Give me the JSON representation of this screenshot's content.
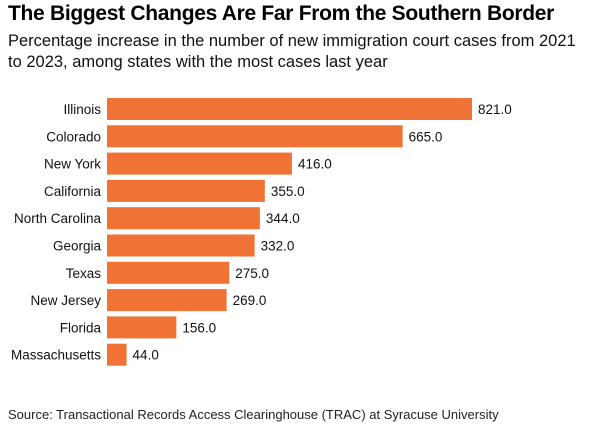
{
  "title": "The Biggest Changes Are Far From the Southern Border",
  "subtitle": "Percentage increase in the number of new immigration court cases from 2021 to 2023, among states with the most cases last year",
  "source": "Source: Transactional Records Access Clearinghouse (TRAC) at Syracuse University",
  "colors": {
    "bar": "#f07335",
    "text": "#111111"
  },
  "chart_data": {
    "type": "bar",
    "orientation": "horizontal",
    "categories": [
      "Illinois",
      "Colorado",
      "New York",
      "California",
      "North Carolina",
      "Georgia",
      "Texas",
      "New Jersey",
      "Florida",
      "Massachusetts"
    ],
    "values": [
      821.0,
      665.0,
      416.0,
      355.0,
      344.0,
      332.0,
      275.0,
      269.0,
      156.0,
      44.0
    ],
    "value_labels": [
      "821.0",
      "665.0",
      "416.0",
      "355.0",
      "344.0",
      "332.0",
      "275.0",
      "269.0",
      "156.0",
      "44.0"
    ],
    "xlim": [
      0,
      821
    ],
    "grid": false,
    "legend": "none"
  }
}
